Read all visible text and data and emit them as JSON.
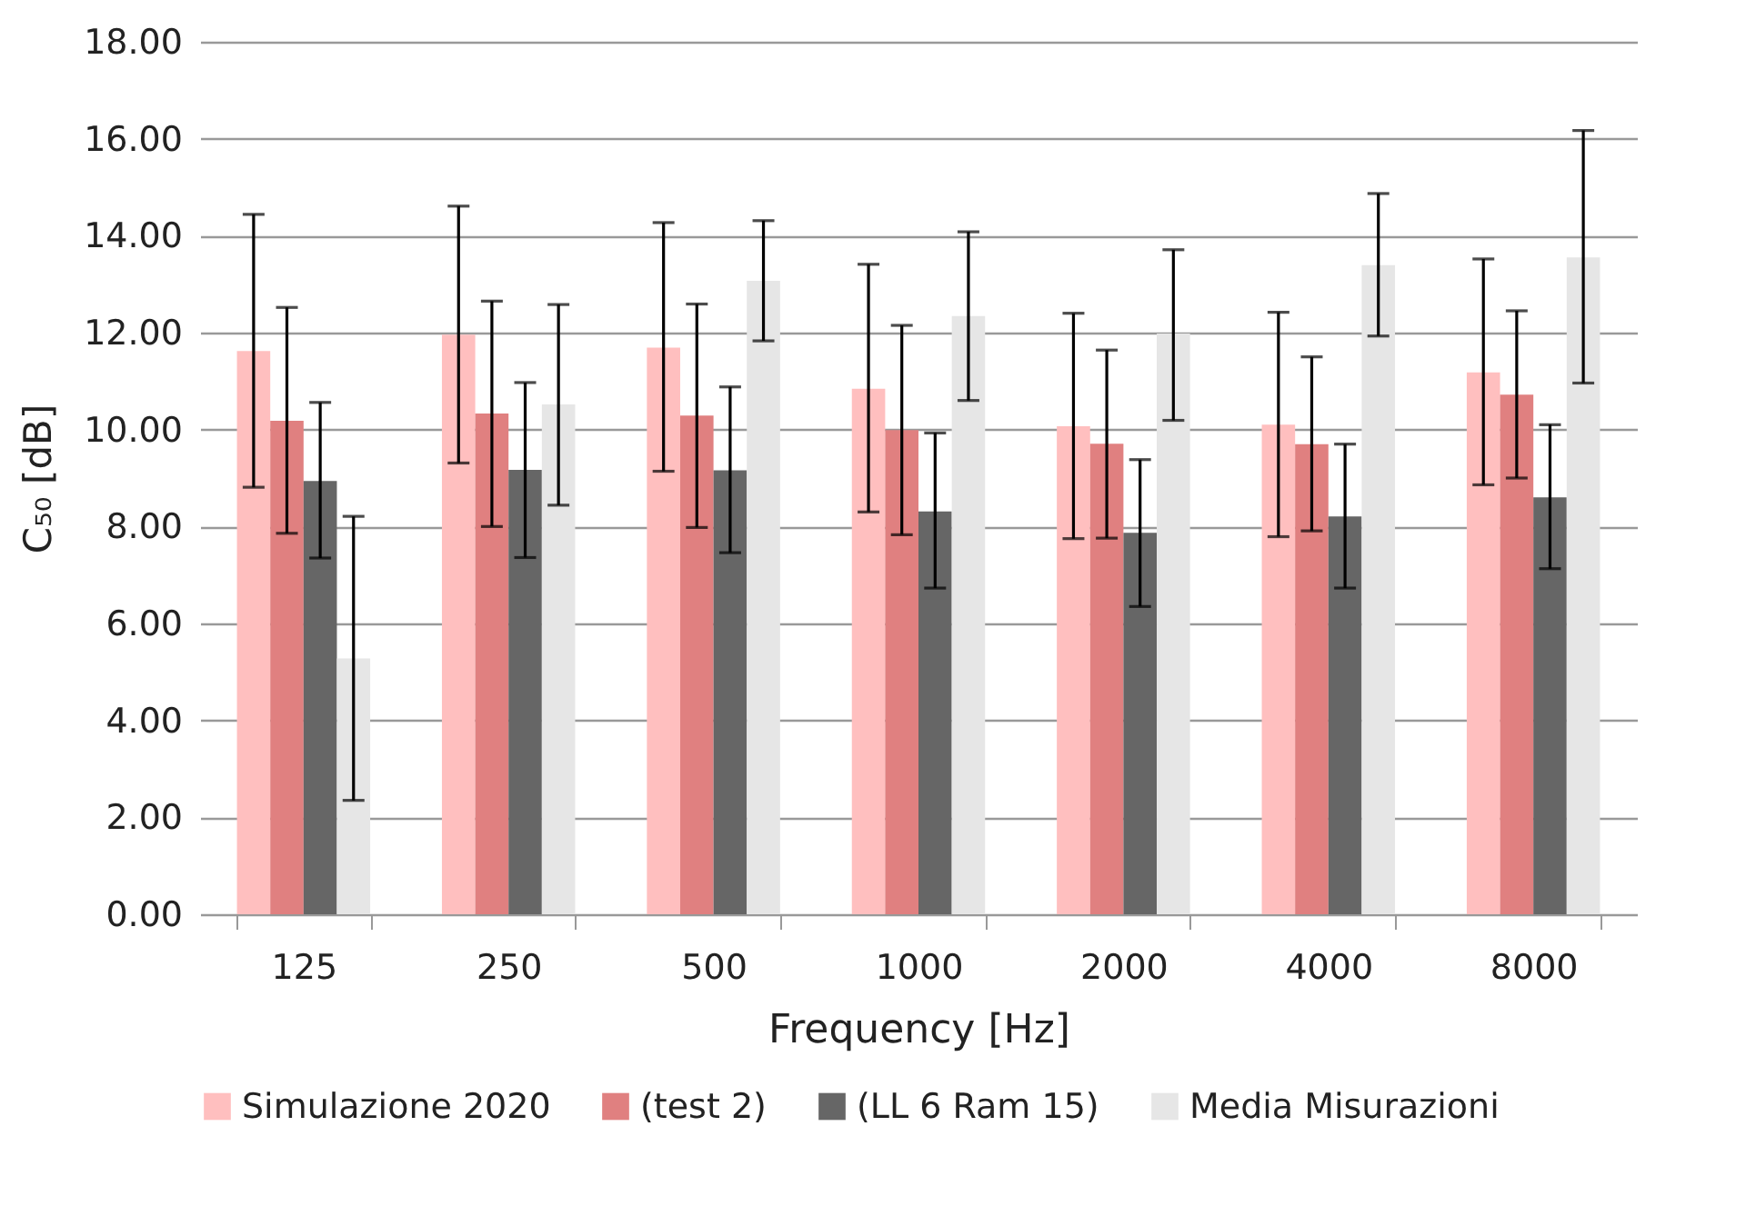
{
  "chart_data": {
    "type": "bar",
    "xlabel": "Frequency [Hz]",
    "ylabel": "C₅₀ [dB]",
    "categories": [
      "125",
      "250",
      "500",
      "1000",
      "2000",
      "4000",
      "8000"
    ],
    "series": [
      {
        "name": "Simulazione 2020",
        "color": "#ffbfbf",
        "values": [
          11.62,
          11.96,
          11.69,
          10.84,
          10.07,
          10.1,
          11.18
        ],
        "errors": [
          [
            8.81,
            14.44
          ],
          [
            9.31,
            14.61
          ],
          [
            9.14,
            14.27
          ],
          [
            8.3,
            13.41
          ],
          [
            7.75,
            12.4
          ],
          [
            7.79,
            12.42
          ],
          [
            8.86,
            13.52
          ]
        ]
      },
      {
        "name": "(test 2)",
        "color": "#e08080",
        "values": [
          10.18,
          10.33,
          10.29,
          9.99,
          9.71,
          9.7,
          10.72
        ],
        "errors": [
          [
            7.86,
            12.52
          ],
          [
            8.0,
            12.65
          ],
          [
            7.98,
            12.59
          ],
          [
            7.83,
            12.15
          ],
          [
            7.76,
            11.64
          ],
          [
            7.91,
            11.5
          ],
          [
            9.0,
            12.45
          ]
        ]
      },
      {
        "name": "(LL 6 Ram 15)",
        "color": "#666666",
        "values": [
          8.94,
          9.17,
          9.16,
          8.31,
          7.87,
          8.21,
          8.6
        ],
        "errors": [
          [
            7.35,
            10.56
          ],
          [
            7.36,
            10.97
          ],
          [
            7.46,
            10.88
          ],
          [
            6.73,
            9.93
          ],
          [
            6.35,
            9.38
          ],
          [
            6.73,
            9.7
          ],
          [
            7.13,
            10.1
          ]
        ]
      },
      {
        "name": "Media Misurazioni",
        "color": "#e6e6e6",
        "values": [
          5.28,
          10.52,
          13.07,
          12.34,
          11.98,
          13.39,
          13.55
        ],
        "errors": [
          [
            2.35,
            8.21
          ],
          [
            8.44,
            12.58
          ],
          [
            11.83,
            14.31
          ],
          [
            10.6,
            14.08
          ],
          [
            10.19,
            13.71
          ],
          [
            11.93,
            14.87
          ],
          [
            10.96,
            16.17
          ]
        ]
      }
    ],
    "ylim": [
      0,
      18
    ],
    "yticks": [
      {
        "value": 0,
        "label": "0.00"
      },
      {
        "value": 2,
        "label": "2.00"
      },
      {
        "value": 4,
        "label": "4.00"
      },
      {
        "value": 6,
        "label": "6.00"
      },
      {
        "value": 8,
        "label": "8.00"
      },
      {
        "value": 10,
        "label": "10.00"
      },
      {
        "value": 12,
        "label": "12.00"
      },
      {
        "value": 14,
        "label": "14.00"
      },
      {
        "value": 16,
        "label": "16.00"
      },
      {
        "value": 18,
        "label": "18.00"
      }
    ],
    "grid": "y",
    "legend": "bottom"
  }
}
